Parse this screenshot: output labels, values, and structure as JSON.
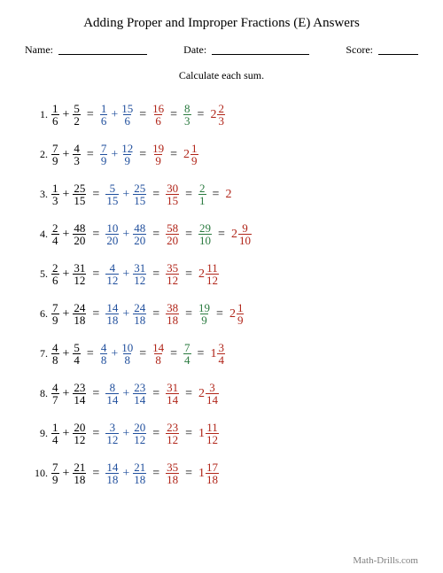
{
  "title": "Adding Proper and Improper Fractions (E) Answers",
  "header": {
    "nameLabel": "Name:",
    "dateLabel": "Date:",
    "scoreLabel": "Score:"
  },
  "instruction": "Calculate each sum.",
  "footer": "Math-Drills.com",
  "colors": {
    "problem": "#000000",
    "step": "#1f4e9c",
    "answer": "#b02418",
    "simplified": "#2a7a3f"
  },
  "rows": [
    {
      "idx": "1.",
      "a": {
        "n": "1",
        "d": "6"
      },
      "b": {
        "n": "5",
        "d": "2"
      },
      "s1": {
        "n": "1",
        "d": "6"
      },
      "s2": {
        "n": "15",
        "d": "6"
      },
      "sum": {
        "n": "16",
        "d": "6"
      },
      "simp": {
        "n": "8",
        "d": "3"
      },
      "mixed": {
        "w": "2",
        "n": "2",
        "d": "3"
      }
    },
    {
      "idx": "2.",
      "a": {
        "n": "7",
        "d": "9"
      },
      "b": {
        "n": "4",
        "d": "3"
      },
      "s1": {
        "n": "7",
        "d": "9"
      },
      "s2": {
        "n": "12",
        "d": "9"
      },
      "sum": {
        "n": "19",
        "d": "9"
      },
      "simp": null,
      "mixed": {
        "w": "2",
        "n": "1",
        "d": "9"
      }
    },
    {
      "idx": "3.",
      "a": {
        "n": "1",
        "d": "3"
      },
      "b": {
        "n": "25",
        "d": "15"
      },
      "s1": {
        "n": "5",
        "d": "15"
      },
      "s2": {
        "n": "25",
        "d": "15"
      },
      "sum": {
        "n": "30",
        "d": "15"
      },
      "simp": {
        "n": "2",
        "d": "1"
      },
      "mixed": null,
      "finalInt": "2"
    },
    {
      "idx": "4.",
      "a": {
        "n": "2",
        "d": "4"
      },
      "b": {
        "n": "48",
        "d": "20"
      },
      "s1": {
        "n": "10",
        "d": "20"
      },
      "s2": {
        "n": "48",
        "d": "20"
      },
      "sum": {
        "n": "58",
        "d": "20"
      },
      "simp": {
        "n": "29",
        "d": "10"
      },
      "mixed": {
        "w": "2",
        "n": "9",
        "d": "10"
      }
    },
    {
      "idx": "5.",
      "a": {
        "n": "2",
        "d": "6"
      },
      "b": {
        "n": "31",
        "d": "12"
      },
      "s1": {
        "n": "4",
        "d": "12"
      },
      "s2": {
        "n": "31",
        "d": "12"
      },
      "sum": {
        "n": "35",
        "d": "12"
      },
      "simp": null,
      "mixed": {
        "w": "2",
        "n": "11",
        "d": "12"
      }
    },
    {
      "idx": "6.",
      "a": {
        "n": "7",
        "d": "9"
      },
      "b": {
        "n": "24",
        "d": "18"
      },
      "s1": {
        "n": "14",
        "d": "18"
      },
      "s2": {
        "n": "24",
        "d": "18"
      },
      "sum": {
        "n": "38",
        "d": "18"
      },
      "simp": {
        "n": "19",
        "d": "9"
      },
      "mixed": {
        "w": "2",
        "n": "1",
        "d": "9"
      }
    },
    {
      "idx": "7.",
      "a": {
        "n": "4",
        "d": "8"
      },
      "b": {
        "n": "5",
        "d": "4"
      },
      "s1": {
        "n": "4",
        "d": "8"
      },
      "s2": {
        "n": "10",
        "d": "8"
      },
      "sum": {
        "n": "14",
        "d": "8"
      },
      "simp": {
        "n": "7",
        "d": "4"
      },
      "mixed": {
        "w": "1",
        "n": "3",
        "d": "4"
      }
    },
    {
      "idx": "8.",
      "a": {
        "n": "4",
        "d": "7"
      },
      "b": {
        "n": "23",
        "d": "14"
      },
      "s1": {
        "n": "8",
        "d": "14"
      },
      "s2": {
        "n": "23",
        "d": "14"
      },
      "sum": {
        "n": "31",
        "d": "14"
      },
      "simp": null,
      "mixed": {
        "w": "2",
        "n": "3",
        "d": "14"
      }
    },
    {
      "idx": "9.",
      "a": {
        "n": "1",
        "d": "4"
      },
      "b": {
        "n": "20",
        "d": "12"
      },
      "s1": {
        "n": "3",
        "d": "12"
      },
      "s2": {
        "n": "20",
        "d": "12"
      },
      "sum": {
        "n": "23",
        "d": "12"
      },
      "simp": null,
      "mixed": {
        "w": "1",
        "n": "11",
        "d": "12"
      }
    },
    {
      "idx": "10.",
      "a": {
        "n": "7",
        "d": "9"
      },
      "b": {
        "n": "21",
        "d": "18"
      },
      "s1": {
        "n": "14",
        "d": "18"
      },
      "s2": {
        "n": "21",
        "d": "18"
      },
      "sum": {
        "n": "35",
        "d": "18"
      },
      "simp": null,
      "mixed": {
        "w": "1",
        "n": "17",
        "d": "18"
      }
    }
  ]
}
